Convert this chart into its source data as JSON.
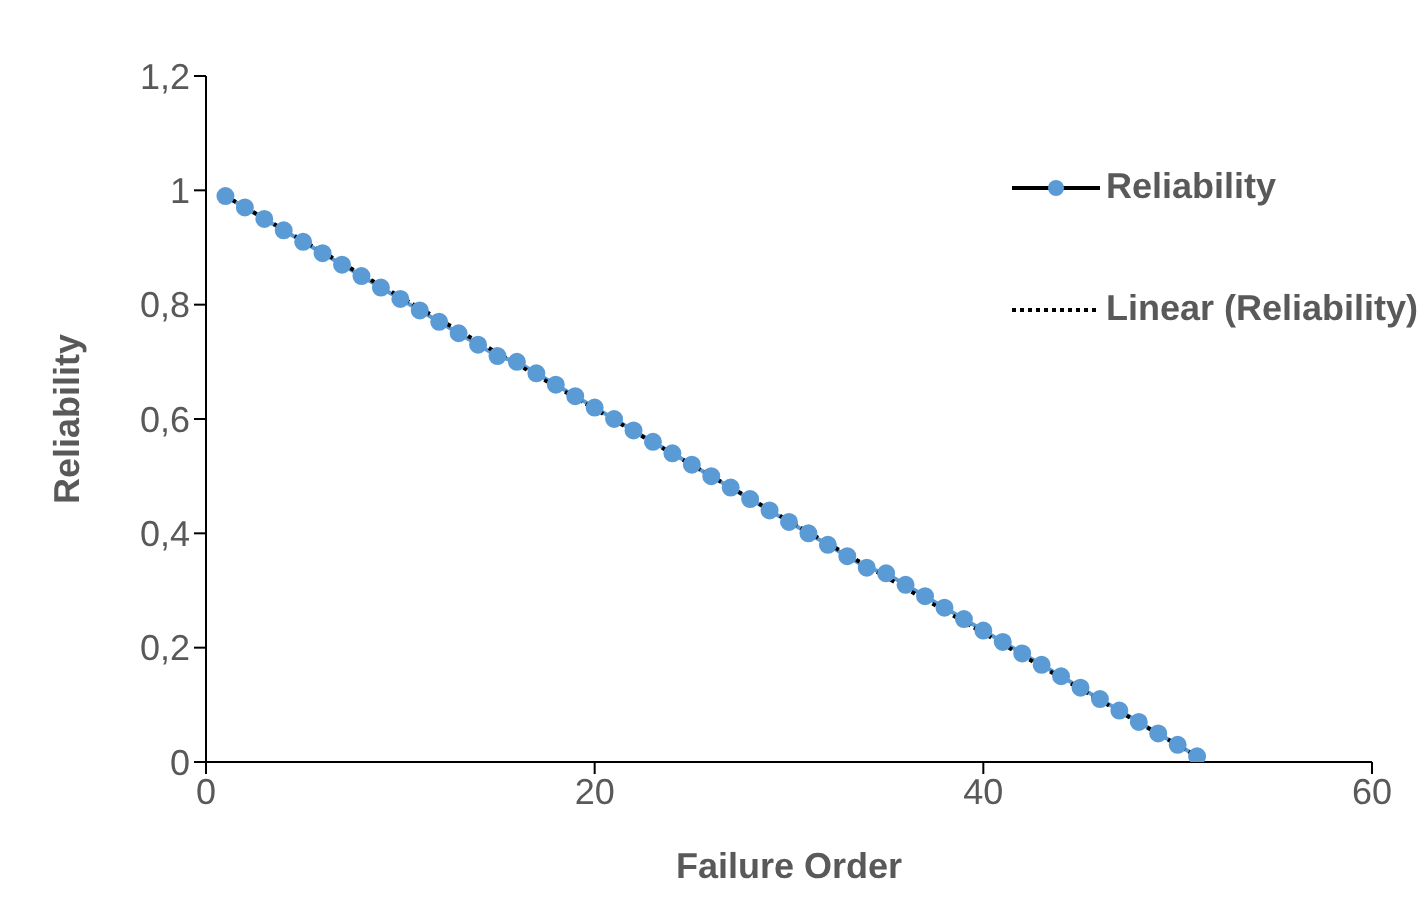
{
  "chart_data": {
    "type": "line",
    "xlabel": "Failure Order",
    "ylabel": "Reliability",
    "xlim": [
      0,
      60
    ],
    "xticks": [
      0,
      20,
      40,
      60
    ],
    "ylim": [
      0,
      1.2
    ],
    "yticks": [
      0,
      {
        "value": 0.2,
        "label": "0,2"
      },
      {
        "value": 0.4,
        "label": "0,4"
      },
      {
        "value": 0.6,
        "label": "0,6"
      },
      {
        "value": 0.8,
        "label": "0,8"
      },
      1,
      {
        "value": 1.2,
        "label": "1,2"
      }
    ],
    "grid": false,
    "legend": "top right",
    "series": [
      {
        "name": "Reliability",
        "type": "line",
        "color": "#5b9bd5",
        "marker": "circle",
        "line_style": "solid",
        "x": [
          1,
          2,
          3,
          4,
          5,
          6,
          7,
          8,
          9,
          10,
          11,
          12,
          13,
          14,
          15,
          16,
          17,
          18,
          19,
          20,
          21,
          22,
          23,
          24,
          25,
          26,
          27,
          28,
          29,
          30,
          31,
          32,
          33,
          34,
          35,
          36,
          37,
          38,
          39,
          40,
          41,
          42,
          43,
          44,
          45,
          46,
          47,
          48,
          49,
          50,
          51
        ],
        "values": [
          0.99,
          0.97,
          0.95,
          0.93,
          0.91,
          0.89,
          0.87,
          0.85,
          0.83,
          0.81,
          0.79,
          0.77,
          0.75,
          0.73,
          0.71,
          0.7,
          0.68,
          0.66,
          0.64,
          0.62,
          0.6,
          0.58,
          0.56,
          0.54,
          0.52,
          0.5,
          0.48,
          0.46,
          0.44,
          0.42,
          0.4,
          0.38,
          0.36,
          0.34,
          0.33,
          0.31,
          0.29,
          0.27,
          0.25,
          0.23,
          0.21,
          0.19,
          0.17,
          0.15,
          0.13,
          0.11,
          0.09,
          0.07,
          0.05,
          0.03,
          0.01
        ]
      },
      {
        "name": "Linear (Reliability)",
        "type": "line",
        "color": "#000000",
        "marker": "none",
        "line_style": "dotted",
        "x": [
          1,
          51
        ],
        "values": [
          0.99,
          0.01
        ]
      }
    ]
  }
}
